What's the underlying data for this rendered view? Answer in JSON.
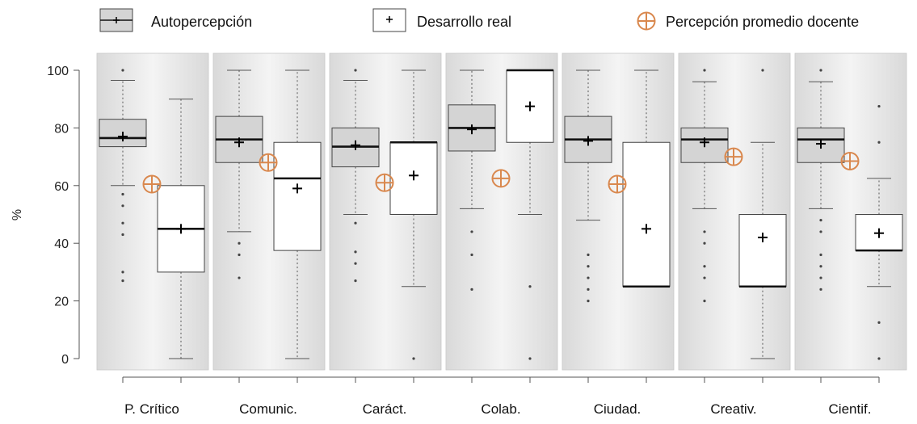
{
  "chart_data": {
    "type": "box",
    "ylabel": "%",
    "ylim": [
      0,
      100
    ],
    "yticks": [
      0,
      20,
      40,
      60,
      80,
      100
    ],
    "grid": false,
    "legend": {
      "placement": "top",
      "entries": [
        {
          "key": "auto",
          "label": "Autopercepción"
        },
        {
          "key": "real",
          "label": "Desarrollo real"
        },
        {
          "key": "docente",
          "label": "Percepción promedio docente"
        }
      ]
    },
    "colors": {
      "auto_box": "#d4d4d4",
      "real_box": "#ffffff",
      "docente_marker": "#d9884e",
      "panel_light": "#f4f4f4",
      "panel_dark": "#d9d9d9"
    },
    "categories": [
      {
        "label": "P. Crítico",
        "auto": {
          "q1": 73.5,
          "median": 76.5,
          "q3": 83,
          "mean": 77,
          "whisker_low": 60,
          "whisker_high": 96.5,
          "outliers": [
            100,
            57,
            53,
            47,
            43,
            30,
            27
          ]
        },
        "real": {
          "q1": 30,
          "median": 45,
          "q3": 60,
          "mean": 45,
          "whisker_low": 0,
          "whisker_high": 90,
          "outliers": []
        },
        "docente": 60.5
      },
      {
        "label": "Comunic.",
        "auto": {
          "q1": 68,
          "median": 76,
          "q3": 84,
          "mean": 75,
          "whisker_low": 44,
          "whisker_high": 100,
          "outliers": [
            40,
            36,
            28
          ]
        },
        "real": {
          "q1": 37.5,
          "median": 62.5,
          "q3": 75,
          "mean": 59,
          "whisker_low": 0,
          "whisker_high": 100,
          "outliers": []
        },
        "docente": 68
      },
      {
        "label": "Caráct.",
        "auto": {
          "q1": 66.5,
          "median": 73.5,
          "q3": 80,
          "mean": 74,
          "whisker_low": 50,
          "whisker_high": 96.5,
          "outliers": [
            100,
            47,
            37,
            33,
            27
          ]
        },
        "real": {
          "q1": 50,
          "median": 75,
          "q3": 75,
          "mean": 63.5,
          "whisker_low": 25,
          "whisker_high": 100,
          "outliers": [
            0
          ]
        },
        "docente": 61
      },
      {
        "label": "Colab.",
        "auto": {
          "q1": 72,
          "median": 80,
          "q3": 88,
          "mean": 79.5,
          "whisker_low": 52,
          "whisker_high": 100,
          "outliers": [
            44,
            36,
            24
          ]
        },
        "real": {
          "q1": 75,
          "median": 100,
          "q3": 100,
          "mean": 87.5,
          "whisker_low": 50,
          "whisker_high": 100,
          "outliers": [
            25,
            0
          ]
        },
        "docente": 62.5
      },
      {
        "label": "Ciudad.",
        "auto": {
          "q1": 68,
          "median": 76,
          "q3": 84,
          "mean": 75.5,
          "whisker_low": 48,
          "whisker_high": 100,
          "outliers": [
            36,
            32,
            28,
            24,
            20
          ]
        },
        "real": {
          "q1": 25,
          "median": 25,
          "q3": 75,
          "mean": 45,
          "whisker_low": 25,
          "whisker_high": 100,
          "outliers": []
        },
        "docente": 60.5
      },
      {
        "label": "Creativ.",
        "auto": {
          "q1": 68,
          "median": 76,
          "q3": 80,
          "mean": 75,
          "whisker_low": 52,
          "whisker_high": 96,
          "outliers": [
            100,
            44,
            40,
            32,
            28,
            20
          ]
        },
        "real": {
          "q1": 25,
          "median": 25,
          "q3": 50,
          "mean": 42,
          "whisker_low": 0,
          "whisker_high": 75,
          "outliers": [
            100
          ]
        },
        "docente": 70
      },
      {
        "label": "Cientif.",
        "auto": {
          "q1": 68,
          "median": 76,
          "q3": 80,
          "mean": 74.5,
          "whisker_low": 52,
          "whisker_high": 96,
          "outliers": [
            100,
            48,
            44,
            36,
            32,
            28,
            24
          ]
        },
        "real": {
          "q1": 37.5,
          "median": 37.5,
          "q3": 50,
          "mean": 43.5,
          "whisker_low": 25,
          "whisker_high": 62.5,
          "outliers": [
            87.5,
            75,
            12.5,
            0
          ]
        },
        "docente": 68.5
      }
    ]
  }
}
